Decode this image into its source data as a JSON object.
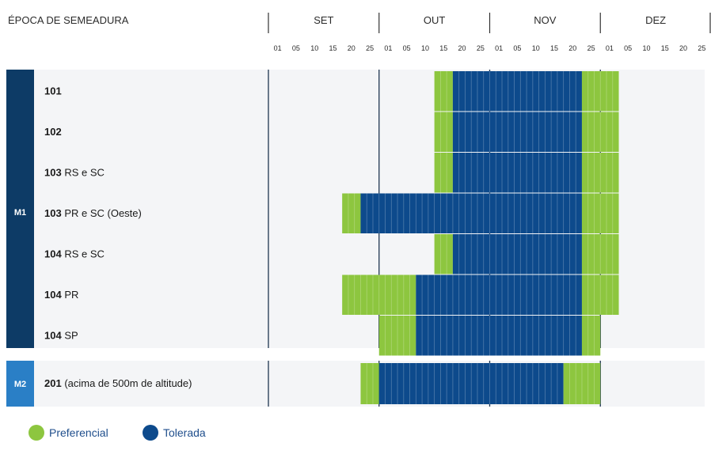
{
  "chart_data": {
    "type": "bar",
    "title": "ÉPOCA DE SEMEADURA",
    "months": [
      "SET",
      "OUT",
      "NOV",
      "DEZ"
    ],
    "day_ticks": [
      "01",
      "05",
      "10",
      "15",
      "20",
      "25"
    ],
    "grid": true,
    "legend_position": "bottom-left",
    "legend": [
      {
        "key": "P",
        "label": "Preferencial",
        "color": "#8dc63f"
      },
      {
        "key": "T",
        "label": "Tolerada",
        "color": "#0d4a8c"
      }
    ],
    "groups": [
      {
        "name": "M1",
        "color": "#0d3b66",
        "rows": [
          0,
          1,
          2,
          3,
          4,
          5,
          6
        ]
      },
      {
        "name": "M2",
        "color": "#2a7fc6",
        "rows": [
          7
        ]
      }
    ],
    "rows": [
      {
        "bold": "101",
        "label": "",
        "periods": [
          {
            "from": "OUT 15",
            "to": "OUT 20",
            "class": "P"
          },
          {
            "from": "OUT 20",
            "to": "NOV 25",
            "class": "T"
          },
          {
            "from": "NOV 25",
            "to": "DEZ 05",
            "class": "P"
          }
        ]
      },
      {
        "bold": "102",
        "label": "",
        "periods": [
          {
            "from": "OUT 15",
            "to": "OUT 20",
            "class": "P"
          },
          {
            "from": "OUT 20",
            "to": "NOV 25",
            "class": "T"
          },
          {
            "from": "NOV 25",
            "to": "DEZ 05",
            "class": "P"
          }
        ]
      },
      {
        "bold": "103",
        "label": "RS e SC",
        "periods": [
          {
            "from": "OUT 15",
            "to": "OUT 20",
            "class": "P"
          },
          {
            "from": "OUT 20",
            "to": "NOV 25",
            "class": "T"
          },
          {
            "from": "NOV 25",
            "to": "DEZ 05",
            "class": "P"
          }
        ]
      },
      {
        "bold": "103",
        "label": "PR e SC (Oeste)",
        "periods": [
          {
            "from": "SET 20",
            "to": "SET 25",
            "class": "P"
          },
          {
            "from": "SET 25",
            "to": "NOV 25",
            "class": "T"
          },
          {
            "from": "NOV 25",
            "to": "DEZ 05",
            "class": "P"
          }
        ]
      },
      {
        "bold": "104",
        "label": "RS e SC",
        "periods": [
          {
            "from": "OUT 15",
            "to": "OUT 20",
            "class": "P"
          },
          {
            "from": "OUT 20",
            "to": "NOV 25",
            "class": "T"
          },
          {
            "from": "NOV 25",
            "to": "DEZ 05",
            "class": "P"
          }
        ]
      },
      {
        "bold": "104",
        "label": "PR",
        "periods": [
          {
            "from": "SET 20",
            "to": "OUT 10",
            "class": "P"
          },
          {
            "from": "OUT 10",
            "to": "NOV 25",
            "class": "T"
          },
          {
            "from": "NOV 25",
            "to": "DEZ 05",
            "class": "P"
          }
        ]
      },
      {
        "bold": "104",
        "label": "SP",
        "periods": [
          {
            "from": "OUT 01",
            "to": "OUT 10",
            "class": "P"
          },
          {
            "from": "OUT 10",
            "to": "NOV 25",
            "class": "T"
          },
          {
            "from": "NOV 25",
            "to": "DEZ 01",
            "class": "P"
          }
        ]
      },
      {
        "bold": "201",
        "label": "(acima de 500m de altitude)",
        "periods": [
          {
            "from": "SET 25",
            "to": "OUT 01",
            "class": "P"
          },
          {
            "from": "OUT 01",
            "to": "NOV 20",
            "class": "T"
          },
          {
            "from": "NOV 20",
            "to": "DEZ 01",
            "class": "P"
          }
        ]
      }
    ]
  }
}
